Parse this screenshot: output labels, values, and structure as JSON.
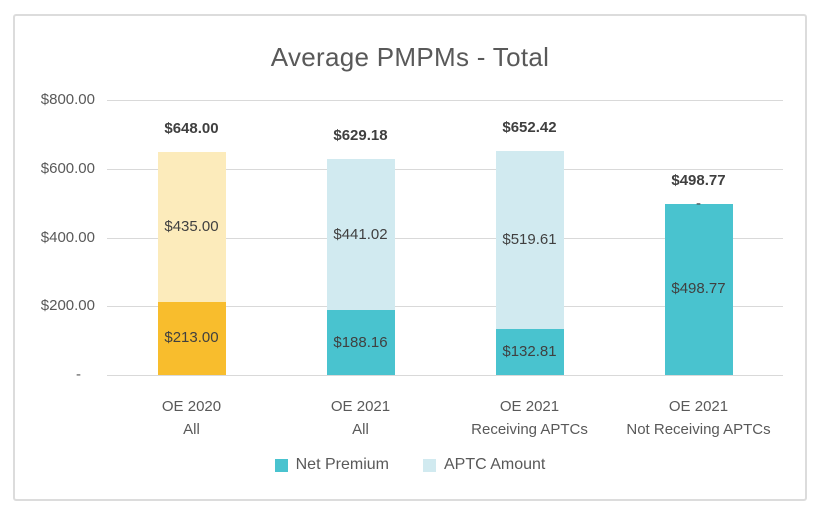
{
  "chart_data": {
    "type": "bar",
    "stacked": true,
    "title": "Average PMPMs - Total",
    "categories": [
      [
        "OE 2020",
        "All"
      ],
      [
        "OE 2021",
        "All"
      ],
      [
        "OE 2021",
        "Receiving APTCs"
      ],
      [
        "OE 2021",
        "Not Receiving APTCs"
      ]
    ],
    "series": [
      {
        "name": "Net Premium",
        "values": [
          213.0,
          188.16,
          132.81,
          498.77
        ],
        "labels": [
          "$213.00",
          "$188.16",
          "$132.81",
          "$498.77"
        ],
        "colors": [
          "#f8bd2d",
          "#49c3cf",
          "#49c3cf",
          "#49c3cf"
        ]
      },
      {
        "name": "APTC Amount",
        "values": [
          435.0,
          441.02,
          519.61,
          0
        ],
        "labels": [
          "$435.00",
          "$441.02",
          "$519.61",
          "-"
        ],
        "colors": [
          "#fcebbb",
          "#d1eaf0",
          "#d1eaf0",
          "#d1eaf0"
        ]
      }
    ],
    "totals": [
      "$648.00",
      "$629.18",
      "$652.42",
      "$498.77"
    ],
    "y_ticks": [
      "$800.00",
      "$600.00",
      "$400.00",
      "$200.00",
      "-"
    ],
    "y_tick_values": [
      800,
      600,
      400,
      200,
      0
    ],
    "ylim": [
      0,
      800
    ],
    "grid": true,
    "legend": [
      {
        "label": "Net Premium",
        "color": "#49c3cf"
      },
      {
        "label": "APTC Amount",
        "color": "#d1eaf0"
      }
    ],
    "colors": {
      "axis_text": "#595959",
      "title_text": "#595959",
      "data_label": "#404040",
      "total_label": "#3f3f3f",
      "gridline": "#d9d9d9",
      "frame_border": "#dcdcdc"
    }
  }
}
